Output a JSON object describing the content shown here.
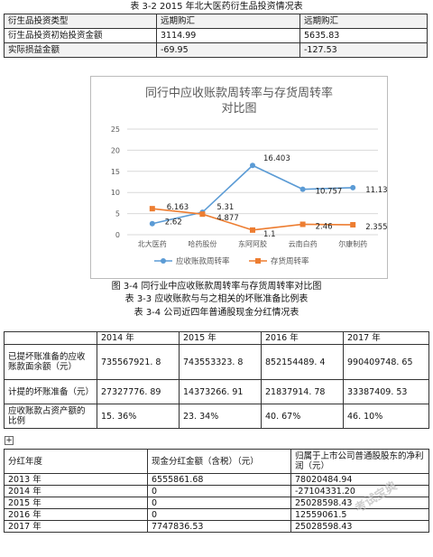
{
  "table1": {
    "caption": "表 3-2 2015 年北大医药衍生品投资情况表",
    "rows": [
      [
        "衍生品投资类型",
        "远期购汇",
        "远期购汇"
      ],
      [
        "衍生品投资初始投资金额",
        "3114.99",
        "5635.83"
      ],
      [
        "实际损益金额",
        "-69.95",
        "-127.53"
      ]
    ]
  },
  "chart": {
    "caption": "图 3-4  同行业中应收账款周转率与存货周转率对比图",
    "title_line1": "同行中应收账款周转率与存货周转率",
    "title_line2": "对比图"
  },
  "chart_data": {
    "type": "line",
    "categories": [
      "北大医药",
      "哈药股份",
      "东阿阿胶",
      "云南白药",
      "尔康制药"
    ],
    "ylim": [
      0,
      25
    ],
    "yticks": [
      0,
      5,
      10,
      15,
      20,
      25
    ],
    "grid": true,
    "legend_position": "bottom",
    "series": [
      {
        "name": "应收账款周转率",
        "values": [
          2.62,
          5.31,
          16.403,
          10.757,
          11.135
        ],
        "labels": [
          "2.62",
          "5.31",
          "16.403",
          "10.757",
          "11.135"
        ],
        "color": "#5b9bd5",
        "marker": "circle"
      },
      {
        "name": "存货周转率",
        "values": [
          6.163,
          4.877,
          1.1,
          2.46,
          2.355
        ],
        "labels": [
          "6.163",
          "4.877",
          "1.1",
          "2.46",
          "2.355"
        ],
        "color": "#ed7d31",
        "marker": "square"
      }
    ]
  },
  "table3": {
    "caption": "表 3-3  应收账款与与之相关的坏账准备比例表",
    "header": [
      "",
      "2014 年",
      "2015 年",
      "2016 年",
      "2017 年"
    ],
    "rows": [
      [
        "已提坏账准备的应收账款面余额（元）",
        "735567921. 8",
        "743553323. 8",
        "852154489. 4",
        "990409748. 65"
      ],
      [
        "计提的坏账准备（元）",
        "27327776. 89",
        "14373266. 91",
        "21837914. 78",
        "33387409. 53"
      ],
      [
        "应收账款占资产额的比例",
        "15. 36%",
        "23. 34%",
        "40. 67%",
        "46. 10%"
      ]
    ]
  },
  "table4": {
    "caption": "表 3-4  公司近四年普通股现金分红情况表",
    "header": [
      "分红年度",
      "现金分红金额（含税）（元）",
      "归属于上市公司普通股股东的净利润（元）"
    ],
    "rows": [
      [
        "2013 年",
        "6555861.68",
        "78020484.94"
      ],
      [
        "2014 年",
        "0",
        "-27104331.20"
      ],
      [
        "2015 年",
        "0",
        "25028598.43"
      ],
      [
        "2016 年",
        "0",
        "12559061.5"
      ],
      [
        "2017 年",
        "7747836.53",
        "25028598.43"
      ]
    ]
  },
  "watermark": "考试宝典"
}
